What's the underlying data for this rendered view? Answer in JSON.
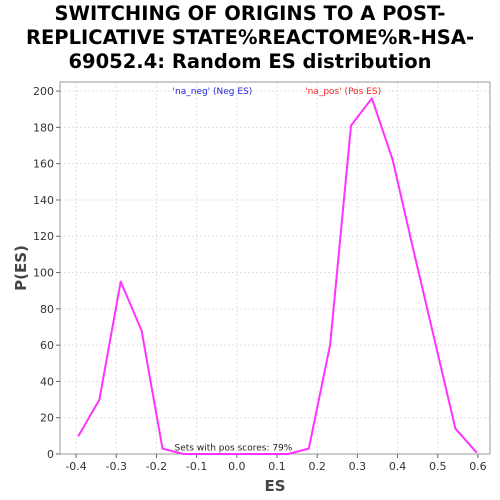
{
  "title_lines": [
    "SWITCHING OF ORIGINS TO A POST-",
    "REPLICATIVE STATE%REACTOME%R-HSA-",
    "69052.4: Random ES distribution"
  ],
  "colors": {
    "series": "#ff33ff",
    "neg_label": "#1f1fdf",
    "pos_label": "#ff1f1f",
    "grid": "#e0e0e0"
  },
  "chart_data": {
    "type": "line",
    "title": "SWITCHING OF ORIGINS TO A POST-REPLICATIVE STATE%REACTOME%R-HSA-69052.4: Random ES distribution",
    "xlabel": "ES",
    "ylabel": "P(ES)",
    "xlim": [
      -0.44,
      0.63
    ],
    "ylim": [
      0,
      205
    ],
    "xticks": [
      -0.4,
      -0.3,
      -0.2,
      -0.1,
      0.0,
      0.1,
      0.2,
      0.3,
      0.4,
      0.5,
      0.6
    ],
    "xtick_labels": [
      "-0.4",
      "-0.3",
      "-0.2",
      "-0.1",
      "0.0",
      "0.1",
      "0.2",
      "0.3",
      "0.4",
      "0.5",
      "0.6"
    ],
    "yticks": [
      0,
      20,
      40,
      60,
      80,
      100,
      120,
      140,
      160,
      180,
      200
    ],
    "ytick_labels": [
      "0",
      "20",
      "40",
      "60",
      "80",
      "100",
      "120",
      "140",
      "160",
      "180",
      "200"
    ],
    "grid": true,
    "legend": [
      {
        "label": "'na_neg' (Neg ES)",
        "color": "#1f1fdf",
        "x": -0.16
      },
      {
        "label": "'na_pos' (Pos ES)",
        "color": "#ff1f1f",
        "x": 0.17
      }
    ],
    "annotation": {
      "text": "Sets with pos scores: 79%",
      "x": -0.16,
      "y": 2
    },
    "series": [
      {
        "x": [
          -0.394,
          -0.342,
          -0.289,
          -0.237,
          -0.185,
          -0.133,
          -0.081,
          -0.029,
          0.023,
          0.075,
          0.127,
          0.179,
          0.232,
          0.284,
          0.336,
          0.388,
          0.44,
          0.492,
          0.544,
          0.596
        ],
        "y": [
          10,
          30,
          95,
          68,
          3,
          0,
          0,
          0,
          0,
          0,
          0,
          3,
          60,
          181,
          196,
          162,
          112,
          63,
          14,
          1
        ]
      }
    ]
  }
}
